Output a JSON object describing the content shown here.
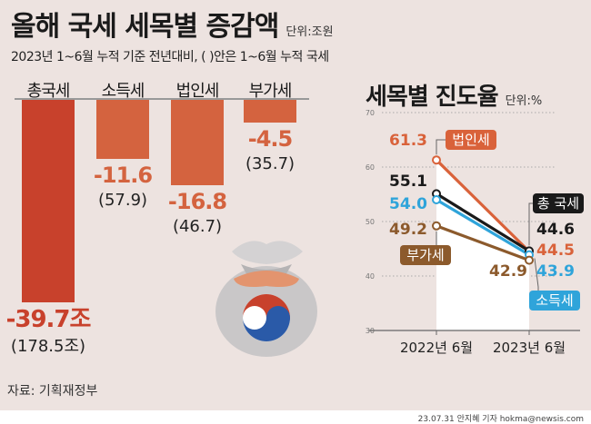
{
  "header": {
    "title": "올해 국세 세목별 증감액",
    "unit": "단위:조원",
    "subtitle": "2023년 1~6월 누적 기준 전년대비, ( )안은 1~6월 누적 국세"
  },
  "chart_data": [
    {
      "type": "bar",
      "title": "올해 국세 세목별 증감액",
      "unit": "단위:조원",
      "categories": [
        "총국세",
        "소득세",
        "법인세",
        "부가세"
      ],
      "values": [
        -39.7,
        -11.6,
        -16.8,
        -4.5
      ],
      "value_labels": [
        "-39.7조",
        "-11.6",
        "-16.8",
        "-4.5"
      ],
      "totals": [
        "(178.5조)",
        "(57.9)",
        "(46.7)",
        "(35.7)"
      ],
      "colors": [
        "#c8412c",
        "#d4633f",
        "#d4633f",
        "#d4633f"
      ]
    },
    {
      "type": "line",
      "title": "세목별 진도율",
      "unit": "단위:%",
      "x": [
        "2022년 6월",
        "2023년 6월"
      ],
      "ylim": [
        30,
        70
      ],
      "yticks": [
        "30",
        "40",
        "50",
        "60",
        "70"
      ],
      "grid": true,
      "series": [
        {
          "name": "법인세",
          "values": [
            61.3,
            44.5
          ],
          "labels": [
            "61.3",
            "44.5"
          ],
          "color": "#d9623a"
        },
        {
          "name": "총 국세",
          "values": [
            55.1,
            44.6
          ],
          "labels": [
            "55.1",
            "44.6"
          ],
          "color": "#1a1a1a"
        },
        {
          "name": "소득세",
          "values": [
            54.0,
            43.9
          ],
          "labels": [
            "54.0",
            "43.9"
          ],
          "color": "#2fa4da"
        },
        {
          "name": "부가세",
          "values": [
            49.2,
            42.9
          ],
          "labels": [
            "49.2",
            "42.9"
          ],
          "color": "#8c5a2c"
        }
      ]
    }
  ],
  "footer": {
    "source": "자료: 기획재정부",
    "credit": "23.07.31 안지혜 기자 hokma@newsis.com"
  }
}
